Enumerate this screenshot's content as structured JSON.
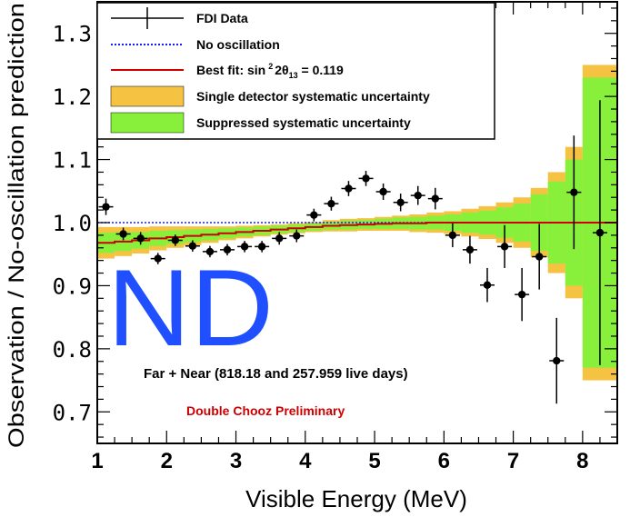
{
  "chart_data": {
    "type": "scatter",
    "xlabel": "Visible Energy (MeV)",
    "ylabel": "Observation / No-oscillation prediction",
    "xlim": [
      1.0,
      8.5
    ],
    "ylim": [
      0.65,
      1.35
    ],
    "xticks": [
      "1",
      "2",
      "3",
      "4",
      "5",
      "6",
      "7",
      "8"
    ],
    "xtick_values": [
      1,
      2,
      3,
      4,
      5,
      6,
      7,
      8
    ],
    "yticks": [
      "0.7",
      "0.8",
      "0.9",
      "1.0",
      "1.1",
      "1.2",
      "1.3"
    ],
    "ytick_values": [
      0.7,
      0.8,
      0.9,
      1.0,
      1.1,
      1.2,
      1.3
    ],
    "overlay_text": "ND",
    "annotation_main": "Far + Near (818.18 and 257.959 live days)",
    "annotation_prelim": "Double Chooz Preliminary",
    "legend": [
      {
        "key": "data",
        "label": "FDI Data"
      },
      {
        "key": "noosc",
        "label": "No oscillation"
      },
      {
        "key": "bestfit",
        "label_prefix": "Best fit: sin",
        "label_sup": "2",
        "label_mid": "2θ",
        "label_sub": "13",
        "label_suffix": " = 0.119"
      },
      {
        "key": "single",
        "label": "Single detector systematic uncertainty"
      },
      {
        "key": "suppressed",
        "label": "Suppressed systematic uncertainty"
      }
    ],
    "colors": {
      "data": "#000000",
      "noosc": "#1a1aff",
      "bestfit": "#cc0000",
      "single": "#f5c242",
      "suppressed": "#88f03a",
      "nd_text": "#1f4fff",
      "prelim": "#cc0000"
    },
    "no_oscillation_y": 1.0,
    "bins": [
      [
        1.0,
        1.25
      ],
      [
        1.25,
        1.5
      ],
      [
        1.5,
        1.75
      ],
      [
        1.75,
        2.0
      ],
      [
        2.0,
        2.25
      ],
      [
        2.25,
        2.5
      ],
      [
        2.5,
        2.75
      ],
      [
        2.75,
        3.0
      ],
      [
        3.0,
        3.25
      ],
      [
        3.25,
        3.5
      ],
      [
        3.5,
        3.75
      ],
      [
        3.75,
        4.0
      ],
      [
        4.0,
        4.25
      ],
      [
        4.25,
        4.5
      ],
      [
        4.5,
        4.75
      ],
      [
        4.75,
        5.0
      ],
      [
        5.0,
        5.25
      ],
      [
        5.25,
        5.5
      ],
      [
        5.5,
        5.75
      ],
      [
        5.75,
        6.0
      ],
      [
        6.0,
        6.25
      ],
      [
        6.25,
        6.5
      ],
      [
        6.5,
        6.75
      ],
      [
        6.75,
        7.0
      ],
      [
        7.0,
        7.25
      ],
      [
        7.25,
        7.5
      ],
      [
        7.5,
        7.75
      ],
      [
        7.75,
        8.0
      ],
      [
        8.0,
        8.5
      ]
    ],
    "best_fit": [
      0.968,
      0.97,
      0.972,
      0.975,
      0.977,
      0.979,
      0.981,
      0.983,
      0.985,
      0.987,
      0.989,
      0.991,
      0.993,
      0.995,
      0.996,
      0.997,
      0.998,
      0.999,
      0.999,
      1.0,
      1.0,
      1.0,
      1.0,
      1.0,
      1.0,
      1.0,
      1.0,
      1.0,
      1.0
    ],
    "single_half_width": [
      0.025,
      0.023,
      0.021,
      0.019,
      0.017,
      0.015,
      0.013,
      0.011,
      0.01,
      0.009,
      0.008,
      0.008,
      0.008,
      0.009,
      0.01,
      0.01,
      0.011,
      0.012,
      0.014,
      0.016,
      0.018,
      0.022,
      0.026,
      0.032,
      0.04,
      0.055,
      0.08,
      0.12,
      0.25
    ],
    "suppressed_half_width": [
      0.016,
      0.015,
      0.013,
      0.012,
      0.011,
      0.01,
      0.009,
      0.008,
      0.007,
      0.007,
      0.006,
      0.006,
      0.006,
      0.006,
      0.007,
      0.007,
      0.008,
      0.009,
      0.01,
      0.011,
      0.013,
      0.016,
      0.019,
      0.024,
      0.03,
      0.045,
      0.065,
      0.1,
      0.23
    ],
    "data": [
      {
        "x": 1.125,
        "y": 1.025,
        "err": 0.013
      },
      {
        "x": 1.375,
        "y": 0.982,
        "err": 0.01
      },
      {
        "x": 1.625,
        "y": 0.975,
        "err": 0.01
      },
      {
        "x": 1.875,
        "y": 0.943,
        "err": 0.009
      },
      {
        "x": 2.125,
        "y": 0.972,
        "err": 0.009
      },
      {
        "x": 2.375,
        "y": 0.963,
        "err": 0.009
      },
      {
        "x": 2.625,
        "y": 0.954,
        "err": 0.009
      },
      {
        "x": 2.875,
        "y": 0.957,
        "err": 0.009
      },
      {
        "x": 3.125,
        "y": 0.962,
        "err": 0.009
      },
      {
        "x": 3.375,
        "y": 0.962,
        "err": 0.009
      },
      {
        "x": 3.625,
        "y": 0.975,
        "err": 0.01
      },
      {
        "x": 3.875,
        "y": 0.979,
        "err": 0.01
      },
      {
        "x": 4.125,
        "y": 1.012,
        "err": 0.01
      },
      {
        "x": 4.375,
        "y": 1.03,
        "err": 0.011
      },
      {
        "x": 4.625,
        "y": 1.054,
        "err": 0.012
      },
      {
        "x": 4.875,
        "y": 1.07,
        "err": 0.012
      },
      {
        "x": 5.125,
        "y": 1.049,
        "err": 0.013
      },
      {
        "x": 5.375,
        "y": 1.032,
        "err": 0.014
      },
      {
        "x": 5.625,
        "y": 1.043,
        "err": 0.015
      },
      {
        "x": 5.875,
        "y": 1.038,
        "err": 0.017
      },
      {
        "x": 6.125,
        "y": 0.98,
        "err": 0.019
      },
      {
        "x": 6.375,
        "y": 0.957,
        "err": 0.022
      },
      {
        "x": 6.625,
        "y": 0.901,
        "err": 0.027
      },
      {
        "x": 6.875,
        "y": 0.962,
        "err": 0.034
      },
      {
        "x": 7.125,
        "y": 0.886,
        "err": 0.042
      },
      {
        "x": 7.375,
        "y": 0.946,
        "err": 0.052
      },
      {
        "x": 7.625,
        "y": 0.781,
        "err": 0.068
      },
      {
        "x": 7.875,
        "y": 1.048,
        "err": 0.09
      },
      {
        "x": 8.25,
        "y": 0.984,
        "err": 0.21
      }
    ]
  }
}
